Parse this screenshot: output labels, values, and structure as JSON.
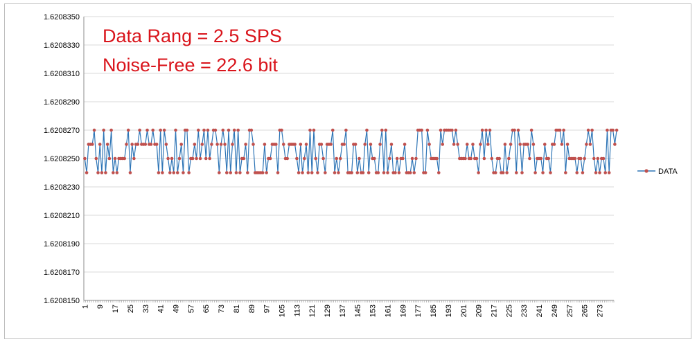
{
  "chart_data": {
    "type": "line",
    "title": "",
    "xlabel": "",
    "ylabel": "",
    "annotations": [
      "Data Rang = 2.5 SPS",
      "Noise-Free = 22.6 bit"
    ],
    "ylim": [
      1.620815,
      1.620835
    ],
    "y_ticks": [
      "1.6208350",
      "1.6208330",
      "1.6208310",
      "1.6208290",
      "1.6208270",
      "1.6208250",
      "1.6208230",
      "1.6208210",
      "1.6208190",
      "1.6208170",
      "1.6208150"
    ],
    "x_ticks": [
      "1",
      "9",
      "17",
      "25",
      "33",
      "41",
      "49",
      "57",
      "65",
      "73",
      "81",
      "89",
      "97",
      "105",
      "113",
      "121",
      "129",
      "137",
      "145",
      "153",
      "161",
      "169",
      "177",
      "185",
      "193",
      "201",
      "209",
      "217",
      "225",
      "233",
      "241",
      "249",
      "257",
      "265",
      "273"
    ],
    "xlim": [
      1,
      280
    ],
    "grid": true,
    "legend_position": "right",
    "series": [
      {
        "name": "DATA",
        "color": "#2e75b6",
        "marker_color": "#c0504d",
        "x_start": 1,
        "values": [
          25,
          24,
          26,
          26,
          26,
          27,
          25,
          24,
          26,
          24,
          27,
          24,
          26,
          25,
          27,
          24,
          25,
          24,
          25,
          25,
          25,
          25,
          26,
          27,
          24,
          26,
          25,
          26,
          26,
          27,
          26,
          26,
          26,
          27,
          26,
          26,
          27,
          26,
          26,
          24,
          27,
          24,
          27,
          26,
          25,
          24,
          25,
          24,
          27,
          24,
          25,
          26,
          24,
          27,
          27,
          24,
          25,
          25,
          26,
          25,
          27,
          25,
          26,
          27,
          25,
          27,
          25,
          26,
          27,
          27,
          26,
          24,
          26,
          27,
          26,
          24,
          27,
          24,
          26,
          27,
          24,
          27,
          24,
          25,
          25,
          26,
          24,
          27,
          27,
          26,
          24,
          24,
          24,
          24,
          24,
          26,
          24,
          25,
          25,
          26,
          26,
          26,
          24,
          27,
          27,
          26,
          25,
          25,
          26,
          26,
          26,
          26,
          25,
          24,
          26,
          24,
          25,
          26,
          24,
          27,
          24,
          27,
          25,
          24,
          26,
          26,
          25,
          24,
          26,
          26,
          26,
          27,
          24,
          25,
          24,
          25,
          26,
          26,
          27,
          24,
          24,
          24,
          26,
          26,
          24,
          25,
          24,
          24,
          26,
          27,
          24,
          26,
          25,
          25,
          24,
          24,
          26,
          27,
          24,
          27,
          24,
          25,
          26,
          24,
          24,
          25,
          24,
          25,
          25,
          26,
          24,
          24,
          24,
          25,
          24,
          25,
          27,
          27,
          27,
          24,
          24,
          27,
          26,
          25,
          25,
          25,
          25,
          24,
          27,
          26,
          27,
          27,
          27,
          27,
          27,
          26,
          27,
          26,
          25,
          25,
          25,
          25,
          26,
          25,
          25,
          26,
          25,
          25,
          24,
          26,
          27,
          25,
          27,
          26,
          27,
          25,
          24,
          24,
          25,
          25,
          24,
          24,
          26,
          24,
          25,
          26,
          27,
          27,
          24,
          27,
          26,
          24,
          26,
          26,
          26,
          25,
          27,
          26,
          24,
          25,
          25,
          25,
          24,
          26,
          25,
          25,
          24,
          26,
          26,
          27,
          27,
          27,
          26,
          27,
          24,
          26,
          25,
          25,
          25,
          25,
          24,
          25,
          25,
          24,
          25,
          26,
          27,
          26,
          27,
          25,
          24,
          25,
          24,
          25,
          25,
          24,
          27,
          24,
          27,
          27,
          26,
          27
        ]
      }
    ]
  }
}
